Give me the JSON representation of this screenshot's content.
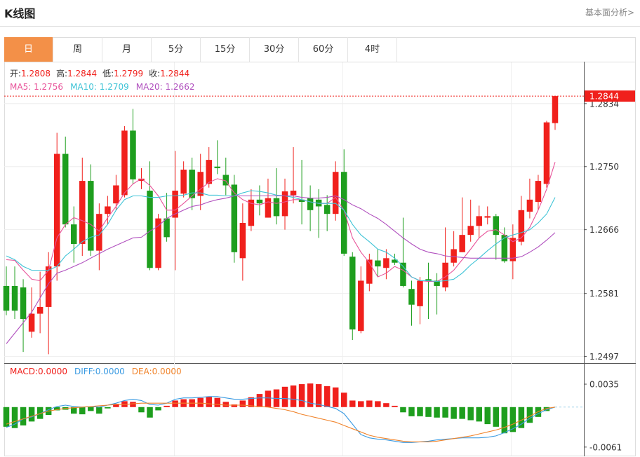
{
  "header": {
    "title": "K线图",
    "link": "基本面分析>"
  },
  "tabs": {
    "items": [
      "日",
      "周",
      "月",
      "5分",
      "15分",
      "30分",
      "60分",
      "4时"
    ],
    "active": "日"
  },
  "chart_data": [
    {
      "type": "candlestick",
      "up_color": "#f0201c",
      "down_color": "#1e9e1e",
      "ohlc_labels": [
        "开:",
        "高:",
        "低:",
        "收:"
      ],
      "legend_separator": ": ",
      "open": [
        1.2591,
        1.2591,
        1.2589,
        1.253,
        1.2554,
        1.2563,
        1.2617,
        1.2767,
        1.2673,
        1.2647,
        1.2731,
        1.2638,
        1.2687,
        1.2701,
        1.2712,
        1.2798,
        1.2731,
        1.2718,
        1.2615,
        1.2681,
        1.2682,
        1.2714,
        1.2746,
        1.2711,
        1.2727,
        1.275,
        1.2739,
        1.2726,
        1.2628,
        1.2671,
        1.2706,
        1.2682,
        1.2708,
        1.2684,
        1.2712,
        1.2706,
        1.2708,
        1.2706,
        1.2699,
        1.2687,
        1.2743,
        1.263,
        1.2531,
        1.2594,
        1.2625,
        1.2615,
        1.2626,
        1.2622,
        1.2587,
        1.2564,
        1.26,
        1.2598,
        1.2589,
        1.2622,
        1.2636,
        1.2659,
        1.2671,
        1.2682,
        1.2684,
        1.2659,
        1.2624,
        1.265,
        1.269,
        1.2703,
        1.2727,
        1.2808
      ],
      "high": [
        1.2617,
        1.2617,
        1.26,
        1.2589,
        1.261,
        1.2636,
        1.2795,
        1.279,
        1.2697,
        1.2762,
        1.2753,
        1.2701,
        1.2711,
        1.2739,
        1.2804,
        1.2827,
        1.2748,
        1.2757,
        1.2687,
        1.2715,
        1.2771,
        1.2757,
        1.2762,
        1.2767,
        1.2776,
        1.2785,
        1.2762,
        1.2739,
        1.2701,
        1.272,
        1.2725,
        1.2734,
        1.2748,
        1.2734,
        1.2776,
        1.2759,
        1.2725,
        1.272,
        1.2712,
        1.2757,
        1.2773,
        1.2636,
        1.2617,
        1.2634,
        1.264,
        1.264,
        1.2634,
        1.2682,
        1.2598,
        1.2603,
        1.2622,
        1.2608,
        1.2669,
        1.2664,
        1.2709,
        1.2706,
        1.2698,
        1.2697,
        1.2687,
        1.2669,
        1.2673,
        1.2711,
        1.2734,
        1.2739,
        1.2811,
        1.2844
      ],
      "low": [
        1.2552,
        1.2547,
        1.2503,
        1.2522,
        1.2528,
        1.25,
        1.2598,
        1.2669,
        1.2622,
        1.2631,
        1.2631,
        1.2612,
        1.2673,
        1.2692,
        1.2709,
        1.2727,
        1.272,
        1.2612,
        1.2612,
        1.265,
        1.2612,
        1.2709,
        1.2692,
        1.2692,
        1.2722,
        1.274,
        1.2712,
        1.2622,
        1.2598,
        1.2664,
        1.2685,
        1.2682,
        1.2673,
        1.2666,
        1.2701,
        1.2673,
        1.2664,
        1.2655,
        1.2664,
        1.2678,
        1.2631,
        1.2519,
        1.2528,
        1.2584,
        1.2603,
        1.26,
        1.2619,
        1.2589,
        1.2538,
        1.254,
        1.2547,
        1.2553,
        1.2584,
        1.2617,
        1.2636,
        1.265,
        1.2655,
        1.2673,
        1.2626,
        1.2622,
        1.26,
        1.2645,
        1.2681,
        1.2692,
        1.2722,
        1.2799
      ],
      "close": [
        1.2558,
        1.2558,
        1.2547,
        1.2554,
        1.2563,
        1.2617,
        1.2767,
        1.2673,
        1.2647,
        1.2731,
        1.2638,
        1.2687,
        1.2697,
        1.2725,
        1.2798,
        1.2733,
        1.2734,
        1.2615,
        1.2681,
        1.2656,
        1.2718,
        1.2746,
        1.2708,
        1.2743,
        1.2759,
        1.2748,
        1.2725,
        1.2636,
        1.2675,
        1.2706,
        1.2701,
        1.2708,
        1.2684,
        1.2717,
        1.2718,
        1.2703,
        1.2692,
        1.2697,
        1.2687,
        1.2743,
        1.2634,
        1.2533,
        1.2598,
        1.2626,
        1.2617,
        1.2628,
        1.2622,
        1.2591,
        1.2566,
        1.2598,
        1.2598,
        1.2591,
        1.2622,
        1.264,
        1.2659,
        1.2671,
        1.2684,
        1.2684,
        1.2659,
        1.2624,
        1.2655,
        1.2692,
        1.2706,
        1.2731,
        1.2809,
        1.2844
      ],
      "series": [
        {
          "name": "MA5",
          "color": "#e8549a",
          "values": [
            1.2626,
            1.2625,
            1.2612,
            1.26,
            1.2598,
            1.2612,
            1.2655,
            1.2673,
            1.2682,
            1.2678,
            1.2673,
            1.2664,
            1.2682,
            1.2697,
            1.2715,
            1.2727,
            1.2734,
            1.2725,
            1.2711,
            1.2692,
            1.2692,
            1.2701,
            1.2711,
            1.272,
            1.2729,
            1.2734,
            1.2731,
            1.2715,
            1.2706,
            1.2701,
            1.2699,
            1.2703,
            1.2701,
            1.2703,
            1.2706,
            1.2706,
            1.2703,
            1.2701,
            1.2701,
            1.2709,
            1.2692,
            1.2655,
            1.2636,
            1.2622,
            1.2603,
            1.2608,
            1.2617,
            1.2612,
            1.2603,
            1.2598,
            1.2597,
            1.2597,
            1.2603,
            1.2612,
            1.2626,
            1.264,
            1.2655,
            1.2664,
            1.2666,
            1.2659,
            1.265,
            1.2655,
            1.2669,
            1.2692,
            1.272,
            1.2756
          ]
        },
        {
          "name": "MA10",
          "color": "#3ec3d6",
          "values": [
            1.2631,
            1.2626,
            1.2617,
            1.2612,
            1.2612,
            1.2612,
            1.2617,
            1.2631,
            1.264,
            1.265,
            1.2656,
            1.2659,
            1.2673,
            1.2692,
            1.2706,
            1.2711,
            1.2711,
            1.2709,
            1.2709,
            1.2711,
            1.2711,
            1.2712,
            1.2715,
            1.2715,
            1.2712,
            1.2712,
            1.2711,
            1.2711,
            1.2715,
            1.2718,
            1.2717,
            1.2715,
            1.2712,
            1.2711,
            1.2709,
            1.2706,
            1.2703,
            1.2701,
            1.2701,
            1.2701,
            1.2692,
            1.2673,
            1.2659,
            1.265,
            1.264,
            1.2636,
            1.2628,
            1.2617,
            1.2603,
            1.2598,
            1.2598,
            1.2597,
            1.2598,
            1.26,
            1.2608,
            1.2619,
            1.2628,
            1.2638,
            1.2647,
            1.2655,
            1.2659,
            1.2662,
            1.2666,
            1.2675,
            1.2687,
            1.2709
          ]
        },
        {
          "name": "MA20",
          "color": "#b04fbe",
          "values": [
            1.2514,
            1.2528,
            1.2542,
            1.2556,
            1.2575,
            1.2594,
            1.2608,
            1.2612,
            1.2617,
            1.2622,
            1.2628,
            1.2634,
            1.264,
            1.2645,
            1.265,
            1.2655,
            1.2656,
            1.2664,
            1.2671,
            1.2681,
            1.2687,
            1.2692,
            1.2697,
            1.2699,
            1.2703,
            1.2706,
            1.2708,
            1.2711,
            1.2711,
            1.2711,
            1.2711,
            1.2711,
            1.2711,
            1.2711,
            1.2711,
            1.2709,
            1.2708,
            1.2708,
            1.2709,
            1.2711,
            1.2706,
            1.2699,
            1.2694,
            1.2687,
            1.2681,
            1.2673,
            1.2664,
            1.2655,
            1.2647,
            1.264,
            1.2636,
            1.2634,
            1.2631,
            1.263,
            1.2629,
            1.2628,
            1.2628,
            1.2628,
            1.2628,
            1.2628,
            1.2628,
            1.263,
            1.2636,
            1.2643,
            1.2652,
            1.2662
          ]
        }
      ],
      "ylim": [
        1.2491,
        1.2888
      ],
      "yticks": [
        1.2497,
        1.2581,
        1.2666,
        {
          "value": 1.275,
          "label": "1.2750"
        },
        1.2834
      ],
      "grid": true
    },
    {
      "type": "macd",
      "up_color": "#f0201c",
      "down_color": "#1e9e1e",
      "legend_separator": ":",
      "series": [
        {
          "name": "MACD",
          "type": "bar",
          "color": "#f0201c",
          "value_label": "0.0000",
          "values": [
            -0.003,
            -0.0032,
            -0.0028,
            -0.0022,
            -0.0018,
            -0.0012,
            -0.0005,
            -0.0004,
            -0.001,
            -0.0011,
            -0.0006,
            -0.001,
            -0.0002,
            0.0005,
            0.0009,
            0.0008,
            -0.0008,
            -0.0016,
            -0.0005,
            0.0002,
            0.001,
            0.0012,
            0.0012,
            0.0014,
            0.0016,
            0.0014,
            0.0008,
            0.0004,
            0.001,
            0.0015,
            0.002,
            0.0025,
            0.0027,
            0.0031,
            0.0033,
            0.0035,
            0.0036,
            0.0035,
            0.0032,
            0.003,
            0.0022,
            0.001,
            0.0009,
            0.001,
            0.0009,
            0.0006,
            0.0002,
            -0.0008,
            -0.0014,
            -0.0014,
            -0.0015,
            -0.0016,
            -0.0016,
            -0.0018,
            -0.0018,
            -0.002,
            -0.0022,
            -0.0026,
            -0.003,
            -0.004,
            -0.0038,
            -0.0032,
            -0.0024,
            -0.0015,
            -0.0006,
            0
          ]
        },
        {
          "name": "DIFF",
          "type": "line",
          "color": "#3b9be2",
          "value_label": "0.0000",
          "values": [
            -0.0031,
            -0.0026,
            -0.0018,
            -0.0015,
            -0.001,
            -0.0004,
            0.0001,
            0.0003,
            0.0001,
            0,
            0.0001,
            0,
            0.0003,
            0.0006,
            0.001,
            0.0012,
            0.001,
            0.0004,
            0.0003,
            0.0006,
            0.0012,
            0.0014,
            0.0014,
            0.0015,
            0.0016,
            0.0016,
            0.0014,
            0.0012,
            0.0012,
            0.0013,
            0.0014,
            0.0014,
            0.0013,
            0.0013,
            0.0012,
            0.001,
            0.0006,
            0.0004,
            0.0001,
            -0.0002,
            -0.001,
            -0.0026,
            -0.0042,
            -0.0047,
            -0.0049,
            -0.005,
            -0.0052,
            -0.0054,
            -0.0054,
            -0.0053,
            -0.0052,
            -0.005,
            -0.0049,
            -0.0048,
            -0.0047,
            -0.0047,
            -0.0047,
            -0.0046,
            -0.0044,
            -0.0039,
            -0.0033,
            -0.0026,
            -0.0017,
            -0.001,
            -0.0004,
            0
          ]
        },
        {
          "name": "DEA",
          "type": "line",
          "color": "#f0832a",
          "value_label": "0.0000",
          "values": [
            -0.0026,
            -0.0022,
            -0.0018,
            -0.0014,
            -0.001,
            -0.0006,
            -0.0004,
            -0.0002,
            -0.0001,
            0,
            0.0001,
            0.0002,
            0.0003,
            0.0004,
            0.0004,
            0.0005,
            0.0006,
            0.0006,
            0.0006,
            0.0006,
            0.0006,
            0.0006,
            0.0006,
            0.0006,
            0.0005,
            0.0004,
            0.0003,
            0.0003,
            0.0003,
            0.0002,
            0.0001,
            0,
            -0.0002,
            -0.0004,
            -0.0007,
            -0.0011,
            -0.0014,
            -0.0017,
            -0.002,
            -0.0023,
            -0.0028,
            -0.0033,
            -0.0038,
            -0.0043,
            -0.0046,
            -0.0048,
            -0.005,
            -0.0052,
            -0.0053,
            -0.0053,
            -0.0053,
            -0.0052,
            -0.005,
            -0.0048,
            -0.0046,
            -0.0044,
            -0.0041,
            -0.0038,
            -0.0035,
            -0.0031,
            -0.0026,
            -0.002,
            -0.0014,
            -0.0007,
            -0.0002,
            0
          ]
        }
      ],
      "ylim": [
        -0.0074,
        0.0065
      ],
      "yticks": [
        -0.0061,
        0.0035
      ],
      "grid": false
    }
  ]
}
